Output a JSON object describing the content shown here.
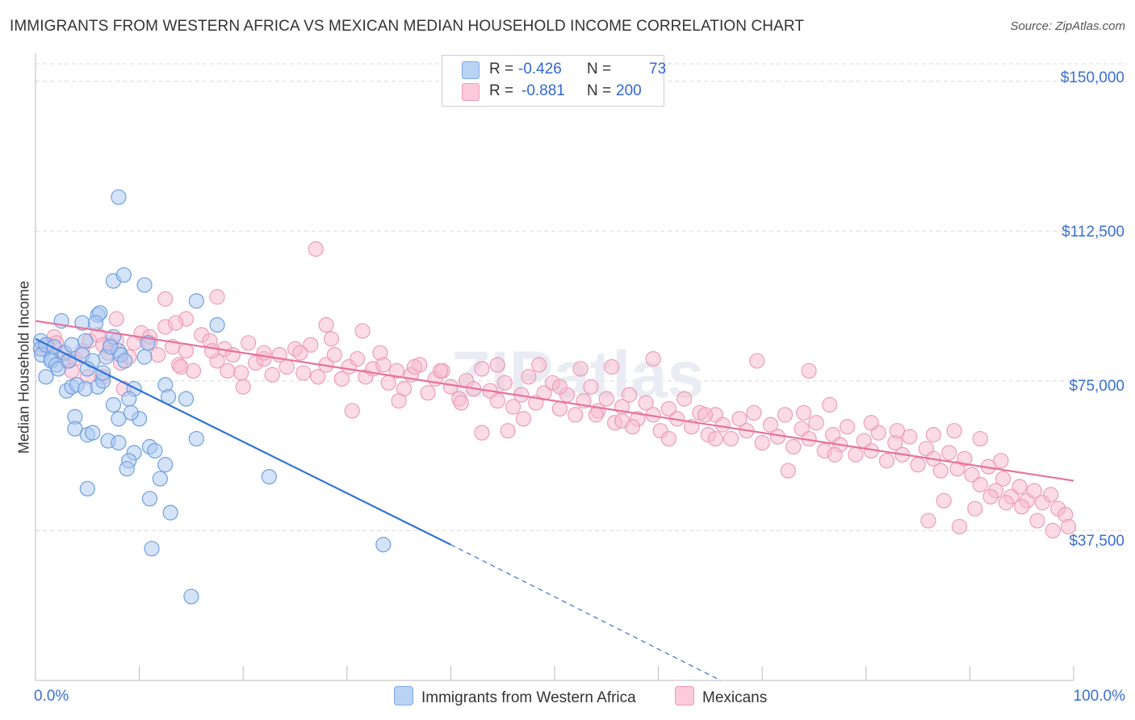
{
  "title": "IMMIGRANTS FROM WESTERN AFRICA VS MEXICAN MEDIAN HOUSEHOLD INCOME CORRELATION CHART",
  "source": "Source: ZipAtlas.com",
  "watermark": "ZIPatlas",
  "legend": {
    "row1": {
      "r_label": "R =",
      "r_value": "-0.426",
      "n_label": "N =",
      "n_value": "73"
    },
    "row2": {
      "r_label": "R =",
      "r_value": "-0.881",
      "n_label": "N =",
      "n_value": "200"
    }
  },
  "bottom_legend": {
    "series1": "Immigrants from Western Africa",
    "series2": "Mexicans"
  },
  "x_tick_labels": {
    "left": "0.0%",
    "right": "100.0%"
  },
  "y_tick_labels": [
    "$150,000",
    "$112,500",
    "$75,000",
    "$37,500"
  ],
  "colors": {
    "blue": "#5b93e0",
    "blue_fill": "#a9c8f2",
    "pink": "#e8719b",
    "pink_fill": "#f7b9cd",
    "axis_label": "#3b6fd1"
  },
  "chart_data": {
    "type": "scatter",
    "title": "IMMIGRANTS FROM WESTERN AFRICA VS MEXICAN MEDIAN HOUSEHOLD INCOME CORRELATION CHART",
    "xlabel": "",
    "ylabel": "Median Household Income",
    "xlim": [
      0,
      100
    ],
    "ylim": [
      0,
      157000
    ],
    "y_ticks": [
      37500,
      75000,
      112500,
      150000
    ],
    "grid": true,
    "legend_position": "top-center",
    "series": [
      {
        "name": "Immigrants from Western Africa",
        "color": "#5b93e0",
        "r": -0.426,
        "n": 73,
        "trend": {
          "x": [
            0,
            40
          ],
          "y": [
            85500,
            34000
          ],
          "dashed_extension_to": [
            66,
            0
          ]
        },
        "points": [
          [
            0.5,
            85000
          ],
          [
            0.5,
            83000
          ],
          [
            0.6,
            81500
          ],
          [
            1.0,
            84000
          ],
          [
            1.5,
            80500
          ],
          [
            1.8,
            83500
          ],
          [
            1.5,
            80000
          ],
          [
            2.0,
            79000
          ],
          [
            2.2,
            78000
          ],
          [
            1.0,
            76000
          ],
          [
            2.5,
            90000
          ],
          [
            4.5,
            89500
          ],
          [
            2.8,
            82000
          ],
          [
            3.2,
            80000
          ],
          [
            3.5,
            84000
          ],
          [
            4.5,
            81500
          ],
          [
            4.8,
            85000
          ],
          [
            5.5,
            80000
          ],
          [
            7.5,
            86000
          ],
          [
            8.0,
            82500
          ],
          [
            3.0,
            72500
          ],
          [
            3.5,
            73500
          ],
          [
            4.0,
            74000
          ],
          [
            3.8,
            66000
          ],
          [
            4.8,
            73000
          ],
          [
            6.0,
            73500
          ],
          [
            6.5,
            75000
          ],
          [
            5.0,
            78000
          ],
          [
            6.8,
            81000
          ],
          [
            8.2,
            81500
          ],
          [
            10.5,
            81000
          ],
          [
            12.5,
            74000
          ],
          [
            9.5,
            73000
          ],
          [
            9.0,
            70500
          ],
          [
            12.8,
            71000
          ],
          [
            14.5,
            70500
          ],
          [
            7.5,
            69000
          ],
          [
            8.0,
            65500
          ],
          [
            10.0,
            65500
          ],
          [
            3.8,
            63000
          ],
          [
            5.0,
            61500
          ],
          [
            5.5,
            62000
          ],
          [
            7.0,
            60000
          ],
          [
            8.0,
            59500
          ],
          [
            9.5,
            57000
          ],
          [
            9.0,
            55000
          ],
          [
            11.0,
            58500
          ],
          [
            11.5,
            57500
          ],
          [
            12.5,
            54000
          ],
          [
            15.5,
            60500
          ],
          [
            7.5,
            100000
          ],
          [
            6.0,
            91500
          ],
          [
            6.2,
            92000
          ],
          [
            5.8,
            89500
          ],
          [
            8.5,
            101500
          ],
          [
            10.5,
            99000
          ],
          [
            15.5,
            95000
          ],
          [
            17.5,
            89000
          ],
          [
            8.0,
            121000
          ],
          [
            5.0,
            48000
          ],
          [
            11.0,
            45500
          ],
          [
            13.0,
            42000
          ],
          [
            11.2,
            33000
          ],
          [
            15.0,
            21000
          ],
          [
            22.5,
            51000
          ],
          [
            33.5,
            34000
          ],
          [
            8.8,
            53000
          ],
          [
            9.2,
            67000
          ],
          [
            7.2,
            83500
          ],
          [
            10.8,
            84500
          ],
          [
            12.0,
            50500
          ],
          [
            6.5,
            77000
          ],
          [
            8.6,
            80000
          ]
        ]
      },
      {
        "name": "Mexicans",
        "color": "#e8719b",
        "r": -0.881,
        "n": 200,
        "trend": {
          "x": [
            0,
            100
          ],
          "y": [
            90000,
            50000
          ]
        },
        "points": [
          [
            0.5,
            83000
          ],
          [
            1.2,
            84000
          ],
          [
            1.8,
            86000
          ],
          [
            2.5,
            82000
          ],
          [
            3.0,
            80000
          ],
          [
            3.8,
            80500
          ],
          [
            4.5,
            82500
          ],
          [
            5.2,
            85000
          ],
          [
            6.0,
            86500
          ],
          [
            6.5,
            84000
          ],
          [
            7.0,
            82000
          ],
          [
            7.8,
            85000
          ],
          [
            8.2,
            79500
          ],
          [
            9.0,
            81000
          ],
          [
            9.5,
            84500
          ],
          [
            10.2,
            87000
          ],
          [
            11.0,
            86000
          ],
          [
            11.8,
            81500
          ],
          [
            12.5,
            88500
          ],
          [
            13.2,
            83500
          ],
          [
            13.8,
            79000
          ],
          [
            14.5,
            82500
          ],
          [
            15.2,
            77500
          ],
          [
            16.0,
            86500
          ],
          [
            16.8,
            85000
          ],
          [
            17.5,
            80000
          ],
          [
            18.2,
            83000
          ],
          [
            19.0,
            81500
          ],
          [
            19.8,
            77000
          ],
          [
            20.5,
            84500
          ],
          [
            21.2,
            79500
          ],
          [
            22.0,
            80500
          ],
          [
            22.8,
            76500
          ],
          [
            23.5,
            81500
          ],
          [
            24.2,
            78500
          ],
          [
            25.0,
            83000
          ],
          [
            25.8,
            77000
          ],
          [
            26.5,
            84000
          ],
          [
            27.2,
            76000
          ],
          [
            28.0,
            79000
          ],
          [
            28.8,
            81500
          ],
          [
            29.5,
            75500
          ],
          [
            30.2,
            78500
          ],
          [
            31.0,
            80500
          ],
          [
            31.8,
            76000
          ],
          [
            32.5,
            78000
          ],
          [
            33.2,
            82000
          ],
          [
            34.0,
            74500
          ],
          [
            34.8,
            77500
          ],
          [
            35.5,
            73000
          ],
          [
            36.2,
            76500
          ],
          [
            37.0,
            79000
          ],
          [
            37.8,
            72000
          ],
          [
            38.5,
            75500
          ],
          [
            39.2,
            77500
          ],
          [
            40.0,
            73500
          ],
          [
            40.8,
            70500
          ],
          [
            41.5,
            75000
          ],
          [
            42.2,
            73000
          ],
          [
            43.0,
            78000
          ],
          [
            43.8,
            72500
          ],
          [
            44.5,
            70000
          ],
          [
            45.2,
            74500
          ],
          [
            46.0,
            68500
          ],
          [
            46.8,
            71500
          ],
          [
            47.5,
            76000
          ],
          [
            48.2,
            69500
          ],
          [
            49.0,
            72000
          ],
          [
            49.8,
            74500
          ],
          [
            50.5,
            68000
          ],
          [
            51.2,
            71500
          ],
          [
            52.0,
            66500
          ],
          [
            52.8,
            70000
          ],
          [
            53.5,
            73500
          ],
          [
            54.2,
            67500
          ],
          [
            55.0,
            70500
          ],
          [
            55.8,
            64500
          ],
          [
            56.5,
            68500
          ],
          [
            57.2,
            71500
          ],
          [
            58.0,
            65500
          ],
          [
            58.8,
            69500
          ],
          [
            59.5,
            66500
          ],
          [
            60.2,
            62500
          ],
          [
            61.0,
            68000
          ],
          [
            61.8,
            65500
          ],
          [
            62.5,
            70500
          ],
          [
            63.2,
            63500
          ],
          [
            64.0,
            67000
          ],
          [
            64.8,
            61500
          ],
          [
            65.5,
            66500
          ],
          [
            66.2,
            64000
          ],
          [
            67.0,
            60500
          ],
          [
            67.8,
            65500
          ],
          [
            68.5,
            62500
          ],
          [
            69.2,
            67000
          ],
          [
            70.0,
            59500
          ],
          [
            70.8,
            64000
          ],
          [
            71.5,
            61000
          ],
          [
            72.2,
            66500
          ],
          [
            73.0,
            58500
          ],
          [
            73.8,
            63000
          ],
          [
            74.5,
            60500
          ],
          [
            75.2,
            64500
          ],
          [
            76.0,
            57500
          ],
          [
            76.8,
            61500
          ],
          [
            77.5,
            59000
          ],
          [
            78.2,
            63500
          ],
          [
            79.0,
            56500
          ],
          [
            79.8,
            60000
          ],
          [
            80.5,
            57500
          ],
          [
            81.2,
            62000
          ],
          [
            82.0,
            55000
          ],
          [
            82.8,
            59500
          ],
          [
            83.5,
            56500
          ],
          [
            84.2,
            61000
          ],
          [
            85.0,
            54000
          ],
          [
            85.8,
            58000
          ],
          [
            86.5,
            55500
          ],
          [
            87.2,
            52500
          ],
          [
            88.0,
            57000
          ],
          [
            88.8,
            53000
          ],
          [
            89.5,
            55500
          ],
          [
            90.2,
            51500
          ],
          [
            91.0,
            49000
          ],
          [
            91.8,
            53500
          ],
          [
            92.5,
            47500
          ],
          [
            93.2,
            50500
          ],
          [
            94.0,
            46000
          ],
          [
            94.8,
            48500
          ],
          [
            95.5,
            45000
          ],
          [
            96.2,
            47500
          ],
          [
            97.0,
            44500
          ],
          [
            97.8,
            46500
          ],
          [
            98.5,
            43000
          ],
          [
            99.2,
            41500
          ],
          [
            99.5,
            38500
          ],
          [
            98.0,
            37500
          ],
          [
            96.5,
            40000
          ],
          [
            95.0,
            43500
          ],
          [
            93.5,
            44500
          ],
          [
            92.0,
            46000
          ],
          [
            90.5,
            43000
          ],
          [
            89.0,
            38500
          ],
          [
            87.5,
            45000
          ],
          [
            86.0,
            40000
          ],
          [
            27.0,
            108000
          ],
          [
            17.5,
            96000
          ],
          [
            12.5,
            95500
          ],
          [
            14.5,
            90500
          ],
          [
            7.8,
            90500
          ],
          [
            13.5,
            89500
          ],
          [
            28.0,
            89000
          ],
          [
            31.5,
            87500
          ],
          [
            28.5,
            85500
          ],
          [
            7.2,
            84000
          ],
          [
            11.0,
            84500
          ],
          [
            17.0,
            82500
          ],
          [
            22.0,
            82000
          ],
          [
            25.5,
            82000
          ],
          [
            33.5,
            79000
          ],
          [
            36.5,
            78500
          ],
          [
            39.0,
            77500
          ],
          [
            44.5,
            79000
          ],
          [
            48.5,
            79000
          ],
          [
            52.5,
            78000
          ],
          [
            55.5,
            78500
          ],
          [
            59.5,
            80500
          ],
          [
            69.5,
            80000
          ],
          [
            74.5,
            77500
          ],
          [
            14.0,
            78500
          ],
          [
            18.5,
            77500
          ],
          [
            5.0,
            76000
          ],
          [
            8.5,
            73000
          ],
          [
            30.5,
            67500
          ],
          [
            43.0,
            62000
          ],
          [
            45.5,
            62500
          ],
          [
            54.0,
            66500
          ],
          [
            57.5,
            63500
          ],
          [
            61.0,
            60500
          ],
          [
            65.5,
            60500
          ],
          [
            72.5,
            52500
          ],
          [
            74.0,
            67000
          ],
          [
            76.5,
            69000
          ],
          [
            80.5,
            64500
          ],
          [
            83.0,
            62500
          ],
          [
            86.5,
            61500
          ],
          [
            88.5,
            62500
          ],
          [
            91.0,
            60500
          ],
          [
            93.0,
            55000
          ],
          [
            77.0,
            56500
          ],
          [
            3.5,
            77500
          ],
          [
            2.0,
            84500
          ],
          [
            6.5,
            76000
          ],
          [
            20.0,
            73500
          ],
          [
            35.0,
            70000
          ],
          [
            41.0,
            69500
          ],
          [
            47.0,
            65500
          ],
          [
            50.5,
            73500
          ],
          [
            56.5,
            65000
          ],
          [
            64.5,
            66500
          ]
        ]
      }
    ]
  }
}
